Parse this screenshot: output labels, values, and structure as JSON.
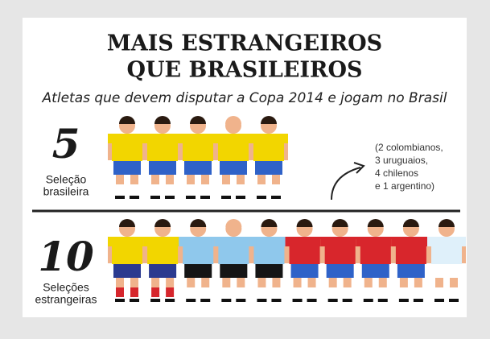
{
  "title_lines": [
    "MAIS ESTRANGEIROS",
    "QUE BRASILEIROS"
  ],
  "subtitle": "Atletas que devem disputar a Copa 2014 e jogam no Brasil",
  "groups": [
    {
      "number": "5",
      "label_lines": [
        "Seleção",
        "brasileira"
      ],
      "players": [
        {
          "shirt": "#f2d600",
          "shorts": "#2f62c8",
          "socks": "#ffffff",
          "hair": "#2a1a10"
        },
        {
          "shirt": "#f2d600",
          "shorts": "#2f62c8",
          "socks": "#ffffff",
          "hair": "#2a1a10"
        },
        {
          "shirt": "#f2d600",
          "shorts": "#2f62c8",
          "socks": "#ffffff",
          "hair": "#2a1a10"
        },
        {
          "shirt": "#f2d600",
          "shorts": "#2f62c8",
          "socks": "#ffffff",
          "hair": "#f0b38c"
        },
        {
          "shirt": "#f2d600",
          "shorts": "#2f62c8",
          "socks": "#ffffff",
          "hair": "#2a1a10"
        }
      ]
    },
    {
      "number": "10",
      "label_lines": [
        "Seleções",
        "estrangeiras"
      ],
      "players": [
        {
          "shirt": "#f2d600",
          "shorts": "#2b3a8f",
          "socks": "#d6262c",
          "hair": "#2a1a10"
        },
        {
          "shirt": "#f2d600",
          "shorts": "#2b3a8f",
          "socks": "#d6262c",
          "hair": "#2a1a10"
        },
        {
          "shirt": "#8fc8ec",
          "shorts": "#151515",
          "socks": "#ffffff",
          "hair": "#2a1a10"
        },
        {
          "shirt": "#8fc8ec",
          "shorts": "#151515",
          "socks": "#ffffff",
          "hair": "#f0b38c"
        },
        {
          "shirt": "#8fc8ec",
          "shorts": "#151515",
          "socks": "#ffffff",
          "hair": "#2a1a10"
        },
        {
          "shirt": "#d8262c",
          "shorts": "#2f62c8",
          "socks": "#ffffff",
          "hair": "#2a1a10"
        },
        {
          "shirt": "#d8262c",
          "shorts": "#2f62c8",
          "socks": "#ffffff",
          "hair": "#2a1a10"
        },
        {
          "shirt": "#d8262c",
          "shorts": "#2f62c8",
          "socks": "#ffffff",
          "hair": "#2a1a10"
        },
        {
          "shirt": "#d8262c",
          "shorts": "#2f62c8",
          "socks": "#ffffff",
          "hair": "#2a1a10"
        },
        {
          "shirt": "#dff0fa",
          "shorts": "#ffffff",
          "socks": "#ffffff",
          "hair": "#2a1a10"
        }
      ]
    }
  ],
  "note_lines": [
    "(2 colombianos,",
    "3 uruguaios,",
    "4 chilenos",
    "e 1 argentino)"
  ]
}
